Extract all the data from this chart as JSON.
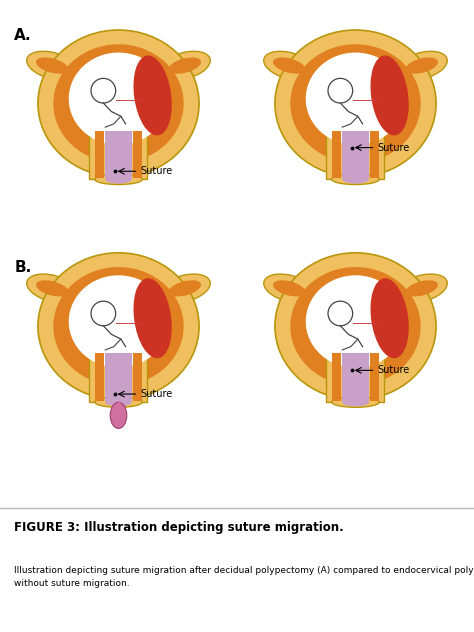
{
  "title": "FIGURE 3: Illustration depicting suture migration.",
  "caption": "Illustration depicting suture migration after decidual polypectomy (A) compared to endocervical polypectomy (B)\nwithout suture migration.",
  "label_A": "A.",
  "label_B": "B.",
  "bg_color": "#ffffff",
  "caption_bg": "#f2f2f2",
  "uterus_outer": "#f0c060",
  "uterus_mid": "#e08020",
  "uterus_inner": "#ffffff",
  "placenta_color": "#cc3322",
  "cervix_color": "#c8a0c8",
  "suture_color": "#000000",
  "title_fontsize": 8.5,
  "caption_fontsize": 6.5
}
